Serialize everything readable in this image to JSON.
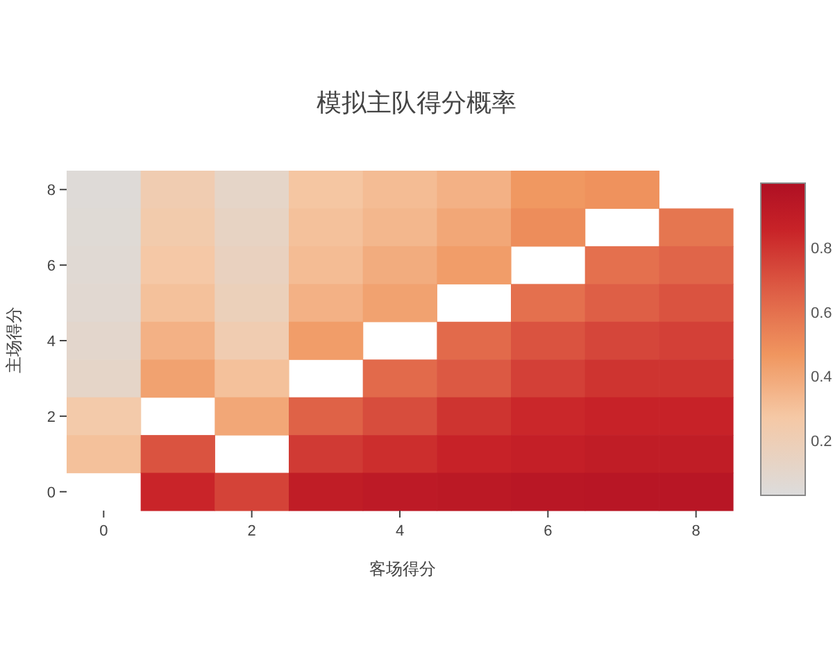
{
  "chart_data": {
    "type": "heatmap",
    "title": "模拟主队得分概率",
    "xlabel": "客场得分",
    "ylabel": "主场得分",
    "categories": [
      "0",
      null,
      "2",
      null,
      "4",
      null,
      "6",
      null,
      "8"
    ],
    "y_categories": [
      "8",
      null,
      "6",
      null,
      "4",
      null,
      "2",
      null,
      "0"
    ],
    "cells": [
      [
        0.05,
        0.22,
        0.12,
        0.28,
        0.32,
        0.36,
        0.46,
        0.48,
        null
      ],
      [
        0.06,
        0.24,
        0.14,
        0.3,
        0.34,
        0.4,
        0.5,
        null,
        0.58
      ],
      [
        0.07,
        0.27,
        0.16,
        0.32,
        0.38,
        0.44,
        null,
        0.6,
        0.64
      ],
      [
        0.08,
        0.3,
        0.18,
        0.36,
        0.42,
        null,
        0.6,
        0.66,
        0.7
      ],
      [
        0.1,
        0.36,
        0.22,
        0.44,
        null,
        0.62,
        0.7,
        0.74,
        0.76
      ],
      [
        0.12,
        0.42,
        0.3,
        null,
        0.62,
        0.68,
        0.76,
        0.8,
        0.8
      ],
      [
        0.25,
        null,
        0.4,
        0.65,
        0.72,
        0.8,
        0.84,
        0.86,
        0.86
      ],
      [
        0.3,
        0.7,
        null,
        0.78,
        0.82,
        0.86,
        0.88,
        0.9,
        0.9
      ],
      [
        null,
        0.85,
        0.75,
        0.9,
        0.92,
        0.93,
        0.94,
        0.95,
        0.95
      ]
    ],
    "clim": [
      0.03,
      1.0
    ],
    "cticks": [
      0.2,
      0.4,
      0.6,
      0.8
    ]
  }
}
